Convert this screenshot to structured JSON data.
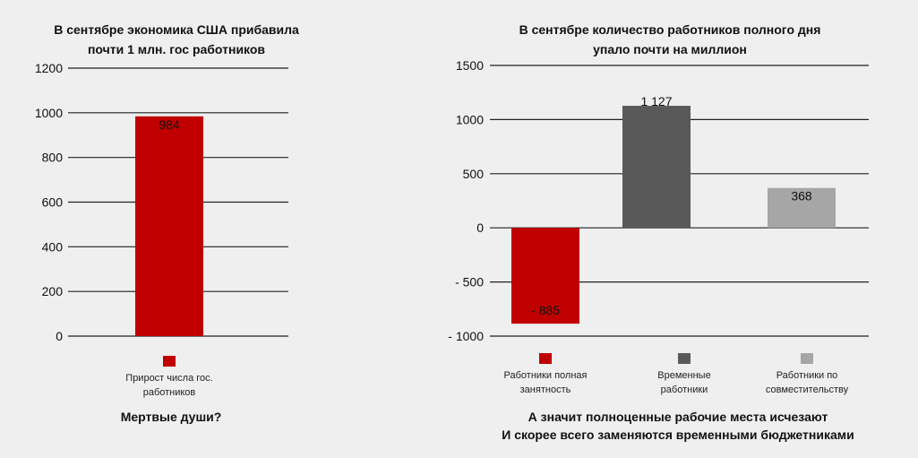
{
  "chart_data": [
    {
      "type": "bar",
      "title_lines": [
        "В сентябре экономика США прибавила",
        "почти 1 млн. гос работников"
      ],
      "ylim": [
        0,
        1200
      ],
      "yticks": [
        0,
        200,
        400,
        600,
        800,
        1000,
        1200
      ],
      "ytick_labels": [
        "0",
        "200",
        "400",
        "600",
        "800",
        "1000",
        "1200"
      ],
      "series": [
        {
          "legend_lines": [
            "Прирост числа гос.",
            "работников"
          ],
          "color": "#c00000",
          "value": 984,
          "value_label": "984"
        }
      ],
      "footnote_lines": [
        "Мертвые души?"
      ],
      "grid": true,
      "legend_position": "bottom"
    },
    {
      "type": "bar",
      "title_lines": [
        "В сентябре количество работников полного дня",
        "упало почти на миллион"
      ],
      "ylim": [
        -1000,
        1500
      ],
      "yticks": [
        -1000,
        -500,
        0,
        500,
        1000,
        1500
      ],
      "ytick_labels": [
        "- 1000",
        "- 500",
        "0",
        "500",
        "1000",
        "1500"
      ],
      "series": [
        {
          "legend_lines": [
            "Работники полная",
            "занятность"
          ],
          "color": "#c00000",
          "value": -885,
          "value_label": "- 885"
        },
        {
          "legend_lines": [
            "Временные",
            "работники"
          ],
          "color": "#595959",
          "value": 1127,
          "value_label": "1 127"
        },
        {
          "legend_lines": [
            "Работники по",
            "совместительству"
          ],
          "color": "#a6a6a6",
          "value": 368,
          "value_label": "368"
        }
      ],
      "footnote_lines": [
        "А значит полноценные рабочие места исчезают",
        "И скорее всего заменяются временными бюджетниками"
      ],
      "grid": true,
      "legend_position": "bottom"
    }
  ]
}
